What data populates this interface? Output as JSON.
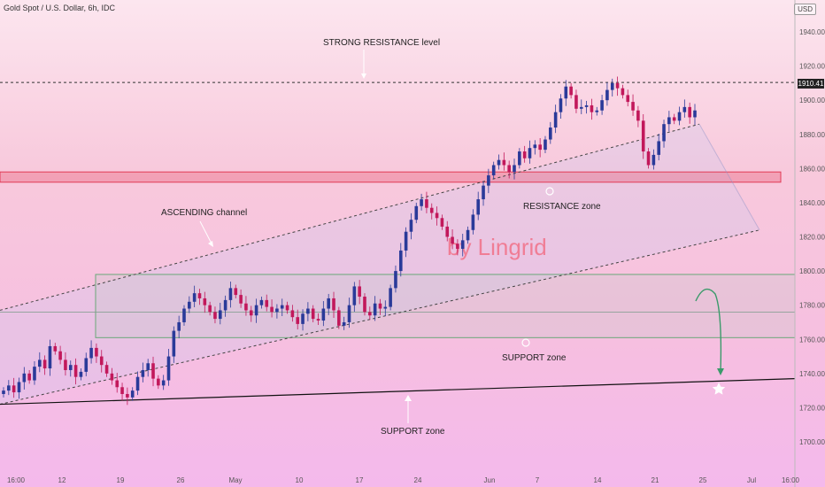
{
  "header": {
    "symbol": "Gold Spot / U.S. Dollar, 6h, IDC",
    "currency": "USD"
  },
  "last_price_label": "1910.41",
  "annotations": {
    "strong_resistance": "STRONG RESISTANCE level",
    "ascending_channel": "ASCENDING channel",
    "resistance_zone": "RESISTANCE zone",
    "support_zone_upper": "SUPPORT zone",
    "support_zone_lower": "SUPPORT zone",
    "watermark": "by Lingrid"
  },
  "colors": {
    "up": "#2a3a99",
    "down": "#c2185b",
    "zone_green": "#6aa879",
    "zone_red": "#e23a55",
    "projection": "#3a9a6a"
  },
  "chart_data": {
    "type": "candlestick",
    "title": "Gold Spot / U.S. Dollar, 6h, IDC",
    "ylim": [
      1680,
      1950
    ],
    "y_ticks": [
      1700,
      1720,
      1740,
      1760,
      1780,
      1800,
      1820,
      1840,
      1860,
      1880,
      1900,
      1920,
      1940
    ],
    "x_tick_labels": [
      "16:00",
      "12",
      "19",
      "26",
      "May",
      "10",
      "17",
      "24",
      "Jun",
      "7",
      "14",
      "21",
      "25",
      "Jul",
      "16:00"
    ],
    "grid": false,
    "candle_count": 134,
    "closes": [
      1730,
      1733,
      1729,
      1735,
      1740,
      1736,
      1744,
      1748,
      1743,
      1756,
      1753,
      1748,
      1742,
      1745,
      1738,
      1741,
      1749,
      1755,
      1750,
      1745,
      1740,
      1736,
      1732,
      1728,
      1726,
      1730,
      1738,
      1742,
      1746,
      1737,
      1733,
      1736,
      1750,
      1765,
      1770,
      1778,
      1782,
      1787,
      1784,
      1780,
      1776,
      1772,
      1777,
      1783,
      1790,
      1786,
      1781,
      1777,
      1774,
      1780,
      1783,
      1779,
      1776,
      1778,
      1780,
      1777,
      1773,
      1769,
      1775,
      1778,
      1772,
      1771,
      1778,
      1784,
      1777,
      1768,
      1770,
      1780,
      1791,
      1785,
      1776,
      1774,
      1781,
      1778,
      1779,
      1790,
      1800,
      1812,
      1823,
      1830,
      1838,
      1842,
      1837,
      1834,
      1831,
      1826,
      1820,
      1816,
      1813,
      1818,
      1824,
      1833,
      1842,
      1850,
      1856,
      1862,
      1865,
      1862,
      1858,
      1862,
      1870,
      1866,
      1872,
      1874,
      1871,
      1877,
      1884,
      1893,
      1901,
      1908,
      1903,
      1895,
      1896,
      1897,
      1893,
      1894,
      1900,
      1906,
      1910,
      1907,
      1903,
      1899,
      1894,
      1888,
      1870,
      1862,
      1868,
      1876,
      1886,
      1890,
      1888,
      1893,
      1896,
      1890,
      1894
    ],
    "overlays": {
      "strong_resistance_level": 1910.41,
      "resistance_zone": [
        1852,
        1858
      ],
      "support_zone": [
        1761,
        1798
      ],
      "zone_midline": 1776,
      "ascending_channel": {
        "upper": [
          1777,
          1886
        ],
        "lower": [
          1722,
          1824
        ]
      },
      "support_trendline": [
        1722,
        1737
      ]
    }
  }
}
